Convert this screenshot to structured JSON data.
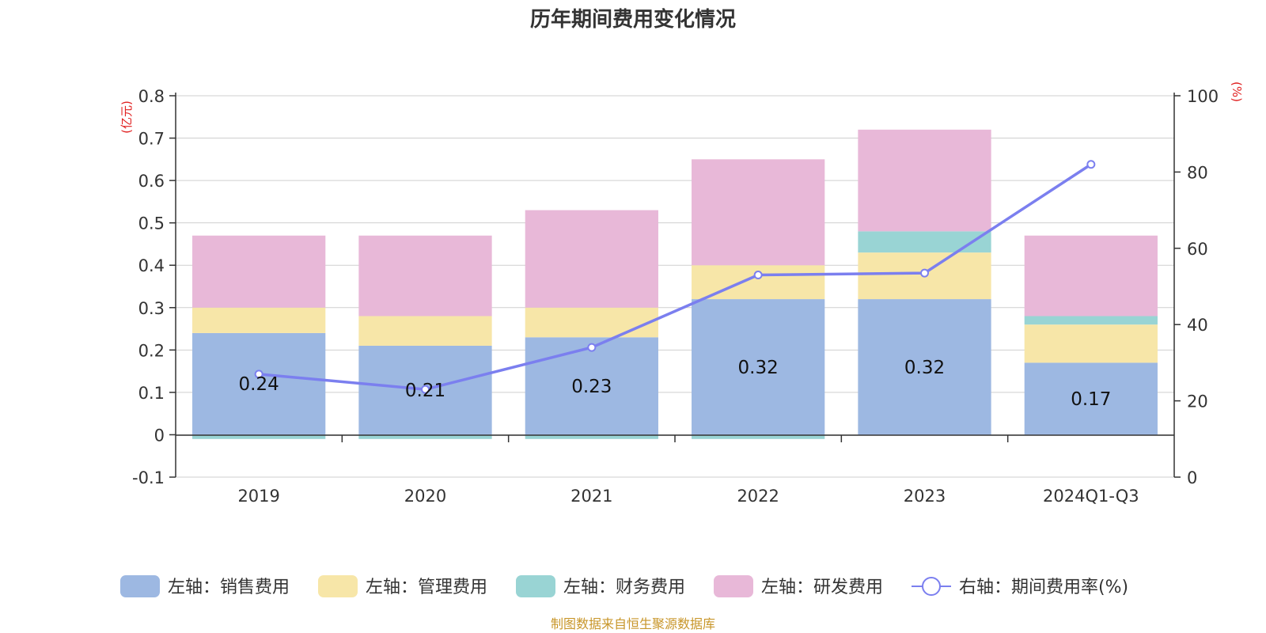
{
  "chart_data": {
    "type": "bar",
    "title": "历年期间费用变化情况",
    "stacked": true,
    "categories": [
      "2019",
      "2020",
      "2021",
      "2022",
      "2023",
      "2024Q1-Q3"
    ],
    "y_left": {
      "unit": "(亿元)",
      "ylim": [
        -0.1,
        0.8
      ],
      "ticks": [
        "0.8",
        "0.7",
        "0.6",
        "0.5",
        "0.4",
        "0.3",
        "0.2",
        "0.1",
        "0",
        "-0.1"
      ]
    },
    "y_right": {
      "unit": "(%)",
      "ylim": [
        0,
        100
      ],
      "ticks": [
        "100",
        "80",
        "60",
        "40",
        "20",
        "0"
      ]
    },
    "series": [
      {
        "name": "左轴：销售费用",
        "axis": "left",
        "color": "#9db8e2",
        "values": [
          0.24,
          0.21,
          0.23,
          0.32,
          0.32,
          0.17
        ],
        "labels": [
          "0.24",
          "0.21",
          "0.23",
          "0.32",
          "0.32",
          "0.17"
        ]
      },
      {
        "name": "左轴：管理费用",
        "axis": "left",
        "color": "#f7e6a8",
        "values": [
          0.06,
          0.07,
          0.07,
          0.08,
          0.11,
          0.09
        ]
      },
      {
        "name": "左轴：财务费用",
        "axis": "left",
        "color": "#99d4d4",
        "values": [
          -0.01,
          -0.01,
          -0.01,
          -0.01,
          0.05,
          0.02
        ]
      },
      {
        "name": "左轴：研发费用",
        "axis": "left",
        "color": "#e8b8d8",
        "values": [
          0.17,
          0.19,
          0.23,
          0.25,
          0.24,
          0.19
        ]
      }
    ],
    "line_series": {
      "name": "右轴：期间费用率(%)",
      "axis": "right",
      "color": "#7b7fef",
      "values": [
        27,
        23,
        34,
        53,
        53.5,
        82
      ]
    },
    "grid": true,
    "legend_position": "bottom"
  },
  "source_note": "制图数据来自恒生聚源数据库"
}
